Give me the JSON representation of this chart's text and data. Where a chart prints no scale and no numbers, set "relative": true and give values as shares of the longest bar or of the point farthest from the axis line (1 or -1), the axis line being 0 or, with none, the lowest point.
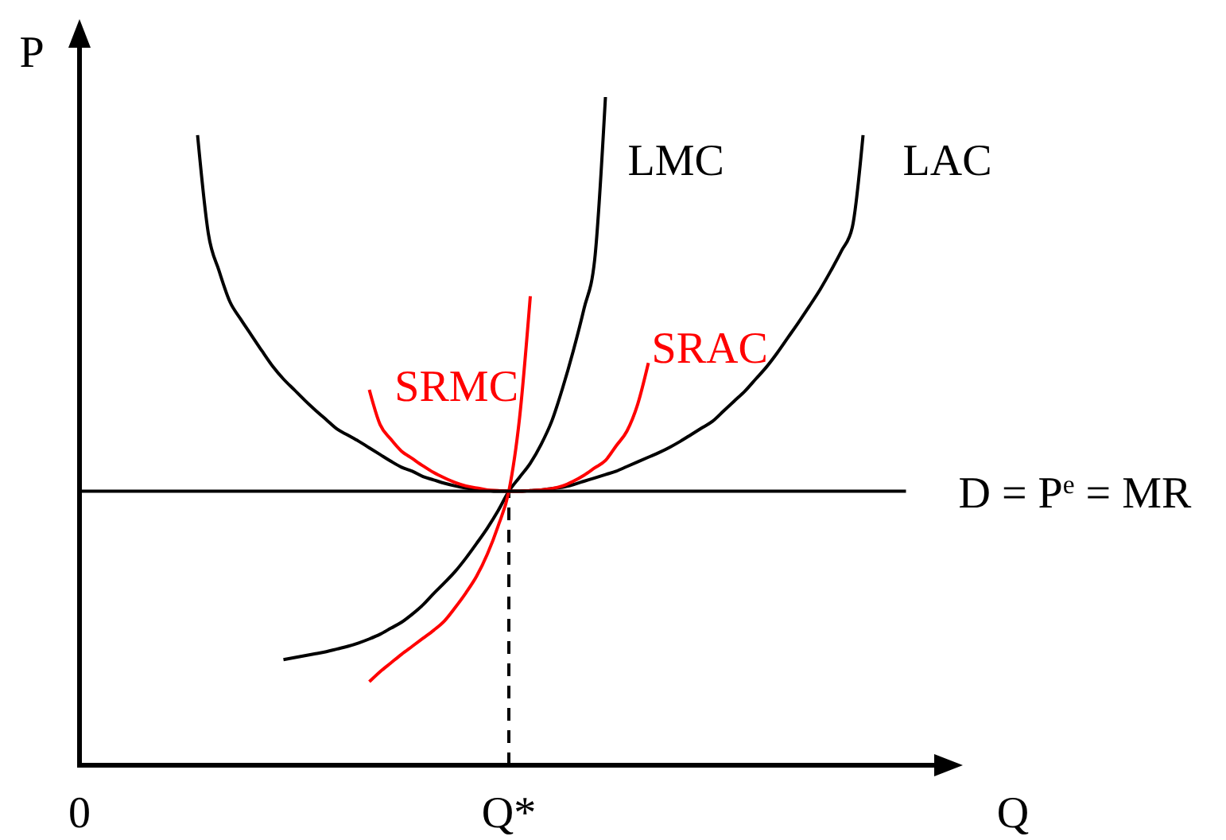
{
  "chart_data": {
    "type": "line",
    "relative": true,
    "xlabel": "Q",
    "ylabel": "P",
    "categories": [
      "0",
      null,
      null,
      null,
      null,
      null,
      null,
      null,
      null,
      null,
      null,
      null,
      null,
      null,
      null,
      null,
      null,
      null,
      null,
      null,
      null,
      null,
      null,
      null,
      null,
      null,
      null,
      null,
      null,
      null,
      null,
      null,
      null,
      null,
      null,
      null,
      null,
      null,
      null,
      null,
      "Q*",
      null,
      null,
      null,
      null,
      null,
      null,
      null,
      null,
      null,
      null,
      null,
      null,
      null,
      null,
      null,
      null,
      null,
      null,
      null,
      null,
      null,
      null,
      null,
      null,
      null,
      null,
      null,
      null,
      null,
      null,
      null,
      null,
      null,
      null,
      null,
      null,
      null,
      null,
      null,
      null,
      null,
      null
    ],
    "ref_lines": [
      {
        "axis": "x",
        "value": "Q*",
        "line_style": "dashed",
        "color": "#000000"
      }
    ],
    "series": [
      {
        "name": "LMC",
        "color": "#000000",
        "values": [
          null,
          null,
          null,
          null,
          null,
          null,
          null,
          null,
          null,
          null,
          null,
          null,
          null,
          null,
          null,
          null,
          null,
          null,
          null,
          0.158,
          0.161,
          0.164,
          0.167,
          0.17,
          0.174,
          0.178,
          0.183,
          0.189,
          0.196,
          0.205,
          0.214,
          0.226,
          0.24,
          0.257,
          0.273,
          0.29,
          0.31,
          0.332,
          0.355,
          0.381,
          0.41,
          0.431,
          0.452,
          0.48,
          0.515,
          0.564,
          0.62,
          0.683,
          0.757,
          1.0,
          null,
          null,
          null,
          null,
          null,
          null,
          null,
          null,
          null,
          null,
          null,
          null,
          null,
          null,
          null,
          null,
          null,
          null,
          null,
          null,
          null,
          null,
          null,
          null,
          null,
          null,
          null,
          null,
          null,
          null,
          null,
          null,
          null
        ]
      },
      {
        "name": "LAC",
        "color": "#000000",
        "values": [
          null,
          null,
          null,
          null,
          null,
          null,
          null,
          null,
          null,
          null,
          null,
          0.943,
          0.796,
          0.74,
          0.694,
          0.668,
          0.644,
          0.62,
          0.597,
          0.578,
          0.562,
          0.546,
          0.531,
          0.517,
          0.503,
          0.494,
          0.485,
          0.475,
          0.465,
          0.455,
          0.446,
          0.44,
          0.432,
          0.427,
          0.422,
          0.418,
          0.415,
          0.413,
          0.411,
          0.41,
          0.41,
          0.41,
          0.411,
          0.412,
          0.414,
          0.416,
          0.42,
          0.425,
          0.43,
          0.435,
          0.44,
          0.447,
          0.454,
          0.461,
          0.468,
          0.476,
          0.485,
          0.495,
          0.505,
          0.515,
          0.53,
          0.545,
          0.56,
          0.578,
          0.596,
          0.617,
          0.64,
          0.663,
          0.687,
          0.712,
          0.74,
          0.77,
          0.805,
          0.943,
          null,
          null,
          null,
          null,
          null,
          null,
          null,
          null,
          null
        ]
      },
      {
        "name": "SRMC",
        "color": "#ff0000",
        "values": [
          null,
          null,
          null,
          null,
          null,
          null,
          null,
          null,
          null,
          null,
          null,
          null,
          null,
          null,
          null,
          null,
          null,
          null,
          null,
          null,
          null,
          null,
          null,
          null,
          null,
          null,
          null,
          0.125,
          0.14,
          0.153,
          0.166,
          0.178,
          0.19,
          0.202,
          0.216,
          0.236,
          0.258,
          0.283,
          0.316,
          0.358,
          0.41,
          0.52,
          0.702,
          null,
          null,
          null,
          null,
          null,
          null,
          null,
          null,
          null,
          null,
          null,
          null,
          null,
          null,
          null,
          null,
          null,
          null,
          null,
          null,
          null,
          null,
          null,
          null,
          null,
          null,
          null,
          null,
          null,
          null,
          null,
          null,
          null,
          null,
          null,
          null,
          null,
          null,
          null,
          null
        ]
      },
      {
        "name": "SRAC",
        "color": "#ff0000",
        "values": [
          null,
          null,
          null,
          null,
          null,
          null,
          null,
          null,
          null,
          null,
          null,
          null,
          null,
          null,
          null,
          null,
          null,
          null,
          null,
          null,
          null,
          null,
          null,
          null,
          null,
          null,
          null,
          0.562,
          0.51,
          0.488,
          0.47,
          0.459,
          0.448,
          0.438,
          0.43,
          0.423,
          0.418,
          0.415,
          0.412,
          0.411,
          0.41,
          0.41,
          0.411,
          0.412,
          0.414,
          0.418,
          0.425,
          0.434,
          0.445,
          0.456,
          0.478,
          0.5,
          0.54,
          0.602,
          null,
          null,
          null,
          null,
          null,
          null,
          null,
          null,
          null,
          null,
          null,
          null,
          null,
          null,
          null,
          null,
          null,
          null,
          null,
          null,
          null,
          null,
          null,
          null,
          null,
          null,
          null,
          null,
          null
        ]
      },
      {
        "name": "D = P$^{e}$ = MR",
        "color": "#000000",
        "values": [
          0.41,
          0.41,
          0.41,
          0.41,
          0.41,
          0.41,
          0.41,
          0.41,
          0.41,
          0.41,
          0.41,
          0.41,
          0.41,
          0.41,
          0.41,
          0.41,
          0.41,
          0.41,
          0.41,
          0.41,
          0.41,
          0.41,
          0.41,
          0.41,
          0.41,
          0.41,
          0.41,
          0.41,
          0.41,
          0.41,
          0.41,
          0.41,
          0.41,
          0.41,
          0.41,
          0.41,
          0.41,
          0.41,
          0.41,
          0.41,
          0.41,
          0.41,
          0.41,
          0.41,
          0.41,
          0.41,
          0.41,
          0.41,
          0.41,
          0.41,
          0.41,
          0.41,
          0.41,
          0.41,
          0.41,
          0.41,
          0.41,
          0.41,
          0.41,
          0.41,
          0.41,
          0.41,
          0.41,
          0.41,
          0.41,
          0.41,
          0.41,
          0.41,
          0.41,
          0.41,
          0.41,
          0.41,
          0.41,
          0.41,
          0.41,
          0.41,
          0.41,
          0.41,
          null,
          null,
          null,
          null,
          null
        ]
      }
    ]
  }
}
